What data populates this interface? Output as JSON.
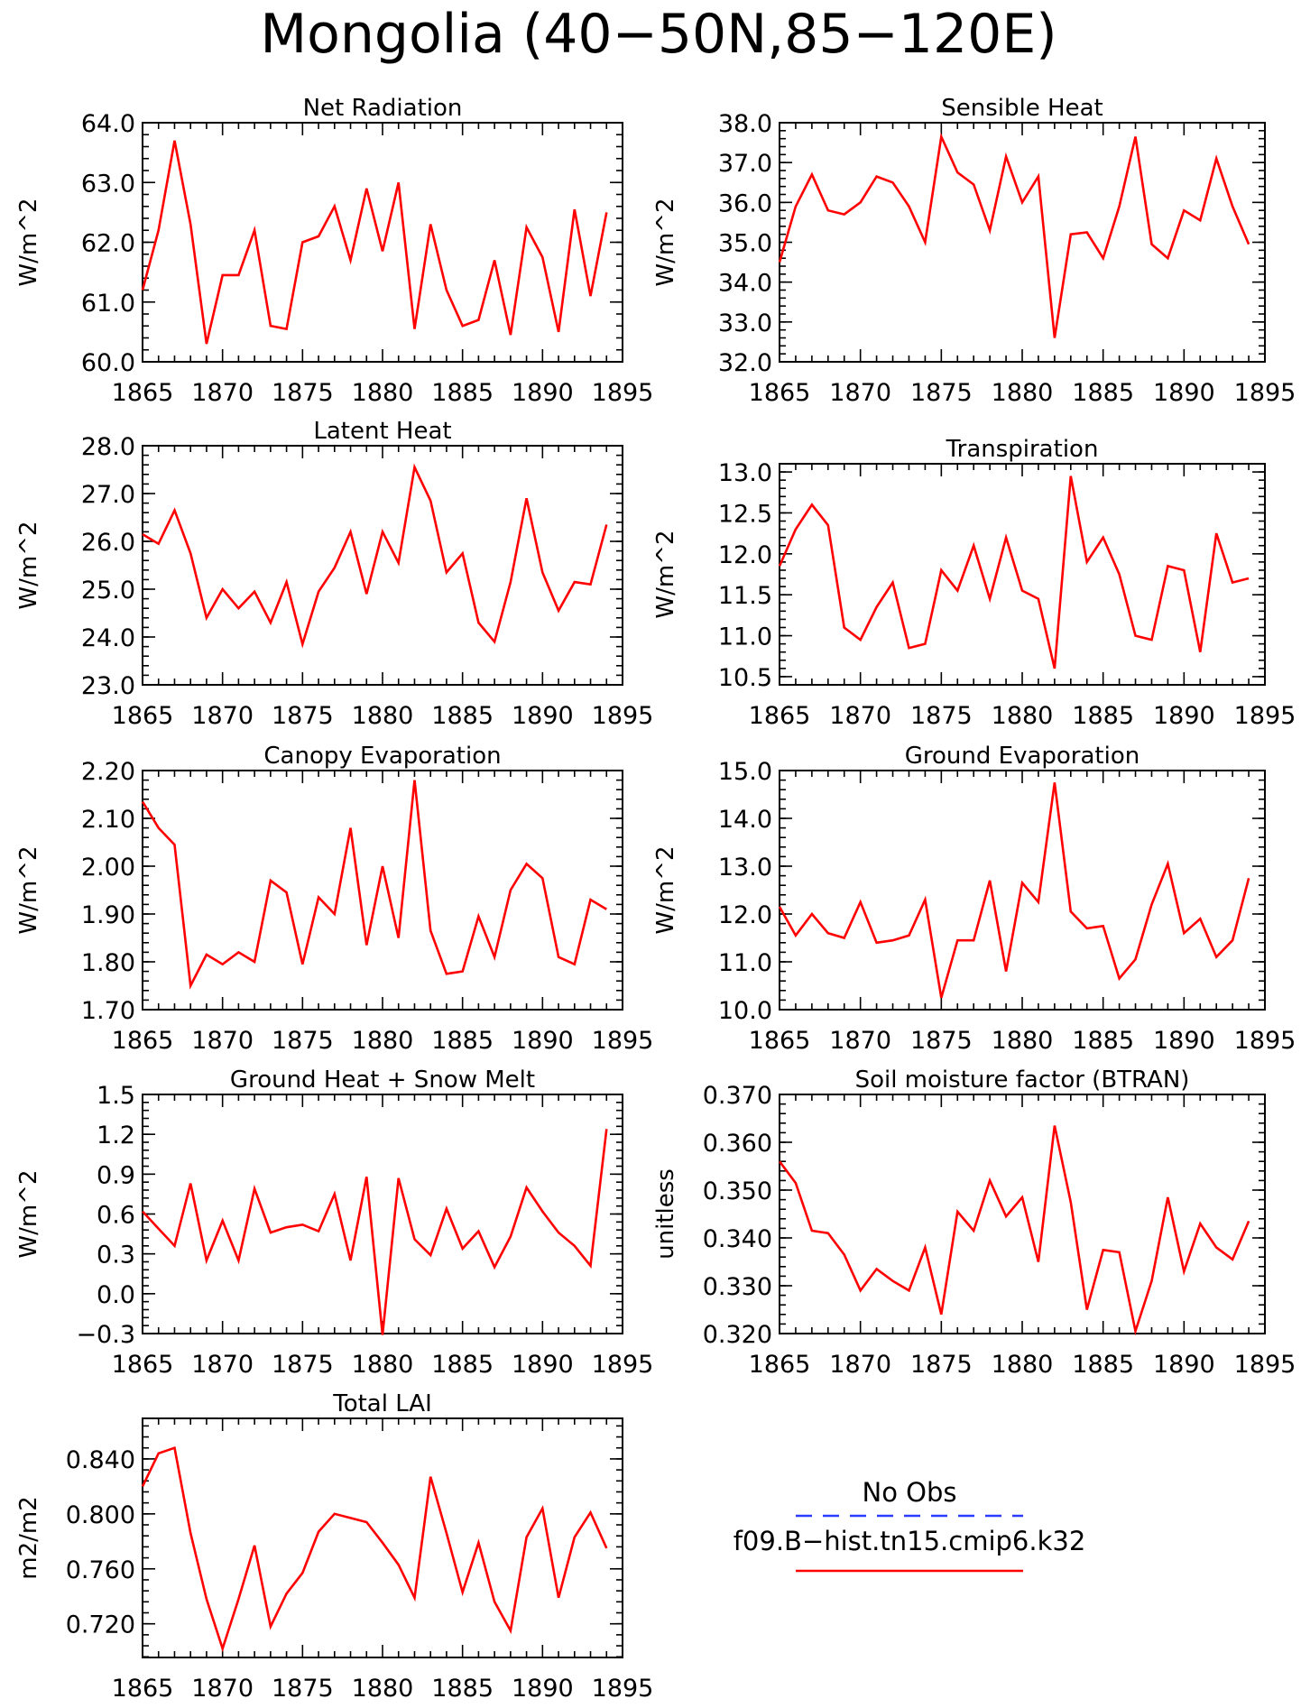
{
  "figure": {
    "title": "Mongolia (40−50N,85−120E)"
  },
  "colors": {
    "model_line": "#ff0000",
    "obs_line": "#2a3cff",
    "axis": "#000000"
  },
  "legend": {
    "obs_label": "No Obs",
    "model_label": "f09.B−hist.tn15.cmip6.k32"
  },
  "chart_data": [
    {
      "type": "line",
      "title": "Net Radiation",
      "ylabel": "W/m^2",
      "xlim": [
        1865,
        1895
      ],
      "ylim": [
        60.0,
        64.0
      ],
      "xticks": [
        "1865",
        "1870",
        "1875",
        "1880",
        "1885",
        "1890",
        "1895"
      ],
      "yticks": [
        "60.0",
        "61.0",
        "62.0",
        "63.0",
        "64.0"
      ],
      "x": [
        1865,
        1866,
        1867,
        1868,
        1869,
        1870,
        1871,
        1872,
        1873,
        1874,
        1875,
        1876,
        1877,
        1878,
        1879,
        1880,
        1881,
        1882,
        1883,
        1884,
        1885,
        1886,
        1887,
        1888,
        1889,
        1890,
        1891,
        1892,
        1893,
        1894
      ],
      "values": [
        61.2,
        62.2,
        63.7,
        62.3,
        60.3,
        61.45,
        61.45,
        62.2,
        60.6,
        60.55,
        62.0,
        62.1,
        62.6,
        61.7,
        62.9,
        61.85,
        63.0,
        60.55,
        62.3,
        61.2,
        60.6,
        60.7,
        61.7,
        60.45,
        62.25,
        61.75,
        60.5,
        62.55,
        61.1,
        62.5
      ],
      "grid": false,
      "legend": "outside, bottom-right"
    },
    {
      "type": "line",
      "title": "Sensible Heat",
      "ylabel": "W/m^2",
      "xlim": [
        1865,
        1895
      ],
      "ylim": [
        32.0,
        38.0
      ],
      "xticks": [
        "1865",
        "1870",
        "1875",
        "1880",
        "1885",
        "1890",
        "1895"
      ],
      "yticks": [
        "32.0",
        "33.0",
        "34.0",
        "35.0",
        "36.0",
        "37.0",
        "38.0"
      ],
      "x": [
        1865,
        1866,
        1867,
        1868,
        1869,
        1870,
        1871,
        1872,
        1873,
        1874,
        1875,
        1876,
        1877,
        1878,
        1879,
        1880,
        1881,
        1882,
        1883,
        1884,
        1885,
        1886,
        1887,
        1888,
        1889,
        1890,
        1891,
        1892,
        1893,
        1894
      ],
      "values": [
        34.5,
        35.9,
        36.7,
        35.8,
        35.7,
        36.0,
        36.65,
        36.5,
        35.9,
        35.0,
        37.65,
        36.75,
        36.45,
        35.3,
        37.15,
        36.0,
        36.65,
        32.6,
        35.2,
        35.25,
        34.6,
        35.9,
        37.65,
        34.95,
        34.6,
        35.8,
        35.55,
        37.1,
        35.9,
        34.95
      ],
      "grid": false
    },
    {
      "type": "line",
      "title": "Latent Heat",
      "ylabel": "W/m^2",
      "xlim": [
        1865,
        1895
      ],
      "ylim": [
        23.0,
        28.0
      ],
      "xticks": [
        "1865",
        "1870",
        "1875",
        "1880",
        "1885",
        "1890",
        "1895"
      ],
      "yticks": [
        "23.0",
        "24.0",
        "25.0",
        "26.0",
        "27.0",
        "28.0"
      ],
      "x": [
        1865,
        1866,
        1867,
        1868,
        1869,
        1870,
        1871,
        1872,
        1873,
        1874,
        1875,
        1876,
        1877,
        1878,
        1879,
        1880,
        1881,
        1882,
        1883,
        1884,
        1885,
        1886,
        1887,
        1888,
        1889,
        1890,
        1891,
        1892,
        1893,
        1894
      ],
      "values": [
        26.15,
        25.95,
        26.65,
        25.75,
        24.4,
        25.0,
        24.6,
        24.95,
        24.3,
        25.15,
        23.85,
        24.95,
        25.45,
        26.2,
        24.9,
        26.2,
        25.55,
        27.55,
        26.85,
        25.35,
        25.75,
        24.3,
        23.9,
        25.15,
        26.9,
        25.35,
        24.55,
        25.15,
        25.1,
        26.35
      ],
      "grid": false
    },
    {
      "type": "line",
      "title": "Transpiration",
      "ylabel": "W/m^2",
      "xlim": [
        1865,
        1895
      ],
      "ylim": [
        10.4,
        13.1
      ],
      "xticks": [
        "1865",
        "1870",
        "1875",
        "1880",
        "1885",
        "1890",
        "1895"
      ],
      "yticks": [
        "10.5",
        "11.0",
        "11.5",
        "12.0",
        "12.5",
        "13.0"
      ],
      "x": [
        1865,
        1866,
        1867,
        1868,
        1869,
        1870,
        1871,
        1872,
        1873,
        1874,
        1875,
        1876,
        1877,
        1878,
        1879,
        1880,
        1881,
        1882,
        1883,
        1884,
        1885,
        1886,
        1887,
        1888,
        1889,
        1890,
        1891,
        1892,
        1893,
        1894
      ],
      "values": [
        11.85,
        12.3,
        12.6,
        12.35,
        11.1,
        10.95,
        11.35,
        11.65,
        10.85,
        10.9,
        11.8,
        11.55,
        12.1,
        11.45,
        12.2,
        11.55,
        11.45,
        10.6,
        12.95,
        11.9,
        12.2,
        11.75,
        11.0,
        10.95,
        11.85,
        11.8,
        10.8,
        12.25,
        11.65,
        11.7
      ],
      "grid": false
    },
    {
      "type": "line",
      "title": "Canopy Evaporation",
      "ylabel": "W/m^2",
      "xlim": [
        1865,
        1895
      ],
      "ylim": [
        1.7,
        2.2
      ],
      "xticks": [
        "1865",
        "1870",
        "1875",
        "1880",
        "1885",
        "1890",
        "1895"
      ],
      "yticks": [
        "1.70",
        "1.80",
        "1.90",
        "2.00",
        "2.10",
        "2.20"
      ],
      "x": [
        1865,
        1866,
        1867,
        1868,
        1869,
        1870,
        1871,
        1872,
        1873,
        1874,
        1875,
        1876,
        1877,
        1878,
        1879,
        1880,
        1881,
        1882,
        1883,
        1884,
        1885,
        1886,
        1887,
        1888,
        1889,
        1890,
        1891,
        1892,
        1893,
        1894
      ],
      "values": [
        2.135,
        2.08,
        2.045,
        1.75,
        1.815,
        1.795,
        1.82,
        1.8,
        1.97,
        1.945,
        1.795,
        1.935,
        1.9,
        2.08,
        1.835,
        2.0,
        1.85,
        2.18,
        1.865,
        1.775,
        1.78,
        1.895,
        1.81,
        1.95,
        2.005,
        1.975,
        1.81,
        1.795,
        1.93,
        1.91
      ],
      "grid": false
    },
    {
      "type": "line",
      "title": "Ground Evaporation",
      "ylabel": "W/m^2",
      "xlim": [
        1865,
        1895
      ],
      "ylim": [
        10.0,
        15.0
      ],
      "xticks": [
        "1865",
        "1870",
        "1875",
        "1880",
        "1885",
        "1890",
        "1895"
      ],
      "yticks": [
        "10.0",
        "11.0",
        "12.0",
        "13.0",
        "14.0",
        "15.0"
      ],
      "x": [
        1865,
        1866,
        1867,
        1868,
        1869,
        1870,
        1871,
        1872,
        1873,
        1874,
        1875,
        1876,
        1877,
        1878,
        1879,
        1880,
        1881,
        1882,
        1883,
        1884,
        1885,
        1886,
        1887,
        1888,
        1889,
        1890,
        1891,
        1892,
        1893,
        1894
      ],
      "values": [
        12.15,
        11.55,
        12.0,
        11.6,
        11.5,
        12.25,
        11.4,
        11.45,
        11.55,
        12.3,
        10.25,
        11.45,
        11.45,
        12.7,
        10.8,
        12.65,
        12.25,
        14.75,
        12.05,
        11.7,
        11.75,
        10.65,
        11.05,
        12.2,
        13.05,
        11.6,
        11.9,
        11.1,
        11.45,
        12.75
      ],
      "grid": false
    },
    {
      "type": "line",
      "title": "Ground Heat + Snow Melt",
      "ylabel": "W/m^2",
      "xlim": [
        1865,
        1895
      ],
      "ylim": [
        -0.3,
        1.5
      ],
      "xticks": [
        "1865",
        "1870",
        "1875",
        "1880",
        "1885",
        "1890",
        "1895"
      ],
      "yticks": [
        "−0.3",
        "0.0",
        "0.3",
        "0.6",
        "0.9",
        "1.2",
        "1.5"
      ],
      "x": [
        1865,
        1866,
        1867,
        1868,
        1869,
        1870,
        1871,
        1872,
        1873,
        1874,
        1875,
        1876,
        1877,
        1878,
        1879,
        1880,
        1881,
        1882,
        1883,
        1884,
        1885,
        1886,
        1887,
        1888,
        1889,
        1890,
        1891,
        1892,
        1893,
        1894
      ],
      "values": [
        0.62,
        0.49,
        0.36,
        0.83,
        0.25,
        0.55,
        0.25,
        0.79,
        0.46,
        0.5,
        0.52,
        0.47,
        0.75,
        0.25,
        0.88,
        -0.31,
        0.87,
        0.41,
        0.29,
        0.64,
        0.34,
        0.47,
        0.2,
        0.43,
        0.8,
        0.62,
        0.46,
        0.36,
        0.21,
        1.24
      ],
      "grid": false
    },
    {
      "type": "line",
      "title": "Soil moisture factor (BTRAN)",
      "ylabel": "unitless",
      "xlim": [
        1865,
        1895
      ],
      "ylim": [
        0.32,
        0.37
      ],
      "xticks": [
        "1865",
        "1870",
        "1875",
        "1880",
        "1885",
        "1890",
        "1895"
      ],
      "yticks": [
        "0.320",
        "0.330",
        "0.340",
        "0.350",
        "0.360",
        "0.370"
      ],
      "x": [
        1865,
        1866,
        1867,
        1868,
        1869,
        1870,
        1871,
        1872,
        1873,
        1874,
        1875,
        1876,
        1877,
        1878,
        1879,
        1880,
        1881,
        1882,
        1883,
        1884,
        1885,
        1886,
        1887,
        1888,
        1889,
        1890,
        1891,
        1892,
        1893,
        1894
      ],
      "values": [
        0.356,
        0.3515,
        0.3415,
        0.341,
        0.3365,
        0.329,
        0.3335,
        0.331,
        0.329,
        0.338,
        0.324,
        0.3455,
        0.3415,
        0.352,
        0.3445,
        0.3485,
        0.335,
        0.3635,
        0.3475,
        0.325,
        0.3375,
        0.337,
        0.3205,
        0.331,
        0.3485,
        0.333,
        0.343,
        0.338,
        0.3355,
        0.3435
      ],
      "grid": false
    },
    {
      "type": "line",
      "title": "Total LAI",
      "ylabel": "m2/m2",
      "xlim": [
        1865,
        1895
      ],
      "ylim": [
        0.6955,
        0.8695
      ],
      "xticks": [
        "1865",
        "1870",
        "1875",
        "1880",
        "1885",
        "1890",
        "1895"
      ],
      "yticks": [
        "0.720",
        "0.760",
        "0.800",
        "0.840"
      ],
      "x": [
        1865,
        1866,
        1867,
        1868,
        1869,
        1870,
        1871,
        1872,
        1873,
        1874,
        1875,
        1876,
        1877,
        1878,
        1879,
        1880,
        1881,
        1882,
        1883,
        1884,
        1885,
        1886,
        1887,
        1888,
        1889,
        1890,
        1891,
        1892,
        1893,
        1894
      ],
      "values": [
        0.82,
        0.844,
        0.848,
        0.786,
        0.738,
        0.702,
        0.738,
        0.777,
        0.718,
        0.742,
        0.757,
        0.787,
        0.8,
        0.797,
        0.794,
        0.779,
        0.763,
        0.739,
        0.827,
        0.786,
        0.743,
        0.779,
        0.736,
        0.715,
        0.783,
        0.804,
        0.739,
        0.783,
        0.801,
        0.775
      ],
      "grid": false
    }
  ]
}
